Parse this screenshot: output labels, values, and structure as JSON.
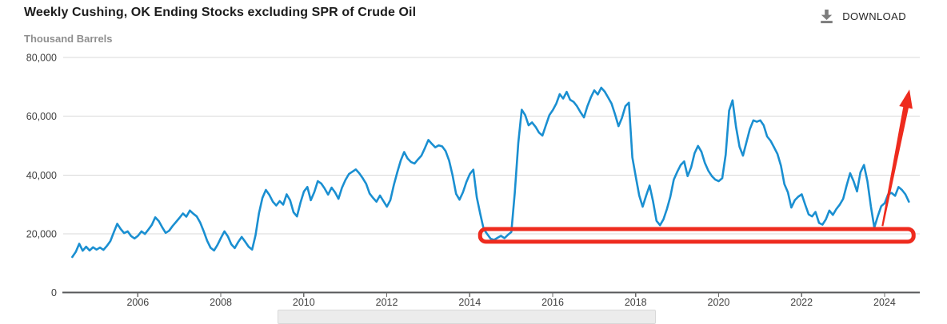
{
  "header": {
    "title": "Weekly Cushing, OK Ending Stocks excluding SPR of Crude Oil",
    "download_label": "DOWNLOAD"
  },
  "colors": {
    "line_blue": "#1a8fd1",
    "annotation_red": "#ee2b1e",
    "grid": "#d9d9d9",
    "axis": "#57585a",
    "title_text": "#1c1c1c",
    "subtitle_text": "#8f8f8f",
    "download_icon_gray": "#7d7d7d"
  },
  "chart_data": {
    "type": "line",
    "title": "Weekly Cushing, OK Ending Stocks excluding SPR of Crude Oil",
    "ylabel": "Thousand Barrels",
    "xlabel": "",
    "xlim": [
      2004.2,
      2024.85
    ],
    "ylim": [
      0,
      80000
    ],
    "grid": "horizontal",
    "legend_position": "none",
    "y_ticks": [
      {
        "value": 0,
        "label": "0"
      },
      {
        "value": 20000,
        "label": "20,000"
      },
      {
        "value": 40000,
        "label": "40,000"
      },
      {
        "value": 60000,
        "label": "60,000"
      },
      {
        "value": 80000,
        "label": "80,000"
      }
    ],
    "x_ticks": [
      {
        "value": 2006,
        "label": "2006"
      },
      {
        "value": 2008,
        "label": "2008"
      },
      {
        "value": 2010,
        "label": "2010"
      },
      {
        "value": 2012,
        "label": "2012"
      },
      {
        "value": 2014,
        "label": "2014"
      },
      {
        "value": 2016,
        "label": "2016"
      },
      {
        "value": 2018,
        "label": "2018"
      },
      {
        "value": 2020,
        "label": "2020"
      },
      {
        "value": 2022,
        "label": "2022"
      },
      {
        "value": 2024,
        "label": "2024"
      }
    ],
    "series": [
      {
        "name": "Weekly Cushing, OK Ending Stocks excluding SPR of Crude Oil",
        "unit": "thousand barrels",
        "color": "#1a8fd1",
        "start_year": 2004.42,
        "interval_years": 0.0833333,
        "values": [
          12100,
          13800,
          16600,
          14200,
          15600,
          14300,
          15400,
          14600,
          15300,
          14500,
          15800,
          17500,
          20500,
          23400,
          21600,
          20200,
          20800,
          19200,
          18400,
          19300,
          20800,
          19900,
          21400,
          23000,
          25600,
          24300,
          22200,
          20300,
          21000,
          22600,
          24000,
          25400,
          26900,
          25800,
          27900,
          26800,
          25900,
          23800,
          20900,
          17600,
          15200,
          14300,
          16200,
          18600,
          20800,
          19100,
          16400,
          15100,
          17200,
          18900,
          17300,
          15600,
          14600,
          19500,
          27000,
          32200,
          34900,
          33200,
          30900,
          29600,
          31100,
          29900,
          33400,
          31400,
          27300,
          25900,
          30600,
          34400,
          35900,
          31400,
          34200,
          37900,
          37100,
          35400,
          33300,
          35700,
          34100,
          31900,
          35600,
          38300,
          40300,
          41100,
          41900,
          40600,
          38900,
          37000,
          33700,
          32200,
          30900,
          33000,
          31100,
          29200,
          31400,
          36600,
          40900,
          44900,
          47800,
          45600,
          44400,
          43900,
          45300,
          46600,
          49200,
          51900,
          50600,
          49400,
          50100,
          49700,
          48100,
          44900,
          39900,
          33600,
          31600,
          34100,
          37600,
          40300,
          41800,
          32400,
          26800,
          21600,
          19900,
          18300,
          17900,
          18600,
          19300,
          18500,
          19600,
          20600,
          33900,
          50900,
          62200,
          60400,
          56900,
          57900,
          56400,
          54400,
          53400,
          56900,
          60400,
          62100,
          64300,
          67500,
          66000,
          68300,
          65600,
          64900,
          63400,
          61400,
          59600,
          63400,
          66400,
          68800,
          67400,
          69700,
          68400,
          66400,
          64300,
          60600,
          56600,
          59400,
          63400,
          64600,
          46000,
          39400,
          33000,
          29200,
          33000,
          36400,
          31000,
          24400,
          22900,
          24900,
          28400,
          32600,
          38400,
          41100,
          43400,
          44600,
          39600,
          42600,
          47400,
          49900,
          47900,
          44100,
          41400,
          39600,
          38400,
          37900,
          38900,
          46900,
          61900,
          65400,
          56400,
          49600,
          46600,
          51100,
          55600,
          58600,
          58100,
          58600,
          56900,
          53100,
          51600,
          49400,
          47100,
          43100,
          36900,
          34100,
          28900,
          31400,
          32600,
          33400,
          29900,
          26600,
          25900,
          27400,
          23700,
          23100,
          24900,
          27900,
          26400,
          28400,
          29900,
          31900,
          36400,
          40600,
          37900,
          34400,
          40900,
          43400,
          37900,
          29400,
          22100,
          25900,
          29400,
          30400,
          33400,
          33900,
          32900,
          35900,
          34900,
          33400,
          30900
        ]
      }
    ],
    "annotations": [
      {
        "kind": "box",
        "x1": 2014.25,
        "x2": 2024.7,
        "y1": 17300,
        "y2": 21600,
        "color": "#ee2b1e"
      },
      {
        "kind": "arrow",
        "x1": 2023.95,
        "y1": 22600,
        "x2": 2024.6,
        "y2": 69100,
        "color": "#ee2b1e"
      }
    ]
  }
}
